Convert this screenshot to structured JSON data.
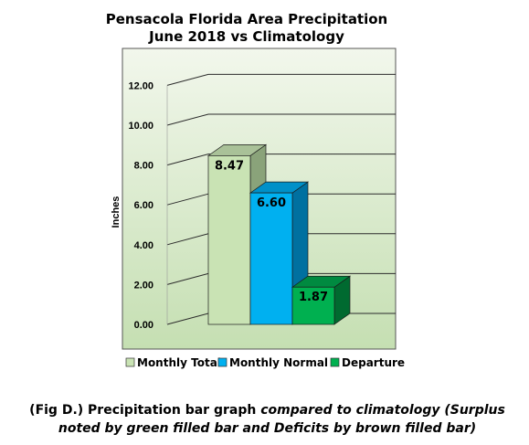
{
  "chart_data": {
    "type": "bar",
    "title_lines": [
      "Pensacola Florida Area Precipitation",
      "June 2018 vs Climatology"
    ],
    "ylabel": "Inches",
    "ylim": [
      0,
      12
    ],
    "yticks": [
      "0.00",
      "2.00",
      "4.00",
      "6.00",
      "8.00",
      "10.00",
      "12.00"
    ],
    "grid": true,
    "legend_position": "bottom",
    "series": [
      {
        "name": "Monthly Total",
        "value": 8.47,
        "label": "8.47",
        "color": "#c9e3b4",
        "side": "#8aa37a",
        "top": "#a9c198"
      },
      {
        "name": "Monthly Normal",
        "value": 6.6,
        "label": "6.60",
        "color": "#00b0f0",
        "side": "#0070a0",
        "top": "#0090c8"
      },
      {
        "name": "Departure",
        "value": 1.87,
        "label": "1.87",
        "color": "#00b050",
        "side": "#006a30",
        "top": "#008a40"
      }
    ]
  },
  "caption": {
    "lead": "(Fig D.) Precipitation bar graph",
    "rest": " compared to climatology (Surplus noted by green filled bar and Deficits by brown filled bar)"
  }
}
